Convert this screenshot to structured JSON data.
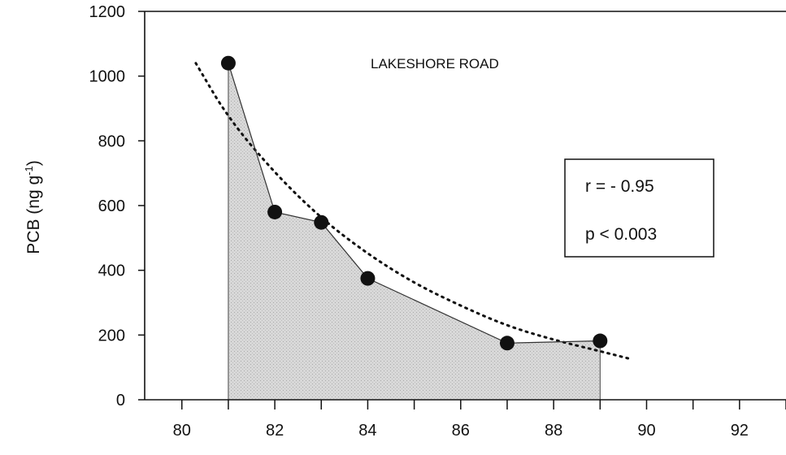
{
  "chart_data": {
    "type": "line",
    "series": [
      {
        "x": [
          81,
          82,
          83,
          84,
          87,
          89
        ],
        "y": [
          1040,
          580,
          548,
          375,
          175,
          182
        ]
      }
    ],
    "trend": {
      "x": [
        80.3,
        81,
        82,
        83,
        84,
        85,
        86,
        87,
        88,
        89,
        89.6
      ],
      "y": [
        1040,
        870,
        700,
        560,
        450,
        360,
        290,
        228,
        185,
        150,
        128
      ]
    },
    "xlim": [
      79.2,
      93
    ],
    "ylim": [
      0,
      1200
    ],
    "xticks": [
      80,
      82,
      84,
      86,
      88,
      90,
      92
    ],
    "yticks": [
      0,
      200,
      400,
      600,
      800,
      1000,
      1200
    ],
    "xlabel": "",
    "ylabel": "PCB (ng g",
    "ylabel_sup": "-1",
    "ylabel_close": ")",
    "annotation": "LAKESHORE ROAD",
    "stats": {
      "r": "r = - 0.95",
      "p": "p < 0.003"
    }
  }
}
